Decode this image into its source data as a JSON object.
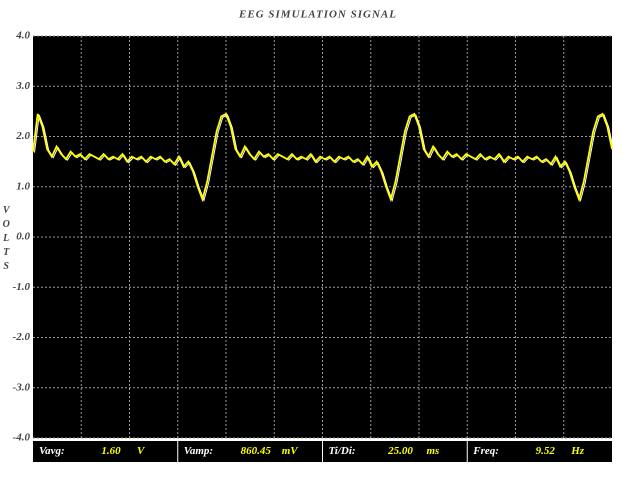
{
  "chart_data": {
    "type": "line",
    "title": "EEG SIMULATION SIGNAL",
    "ylabel": "VOLTS",
    "ylim": [
      -4,
      4
    ],
    "yticks": [
      {
        "value": 4,
        "label": "4.0"
      },
      {
        "value": 3,
        "label": "3.0"
      },
      {
        "value": 2,
        "label": "2.0"
      },
      {
        "value": 1,
        "label": "1.0"
      },
      {
        "value": 0,
        "label": "0.0"
      },
      {
        "value": -1,
        "label": "-1.0"
      },
      {
        "value": -2,
        "label": "-2.0"
      },
      {
        "value": -3,
        "label": "-3.0"
      },
      {
        "value": -4,
        "label": "-4.0"
      }
    ],
    "grid": true,
    "color": "#ffff00",
    "values": [
      1.7,
      2.45,
      2.2,
      1.75,
      1.6,
      1.8,
      1.65,
      1.55,
      1.7,
      1.6,
      1.65,
      1.55,
      1.65,
      1.6,
      1.55,
      1.65,
      1.55,
      1.6,
      1.55,
      1.65,
      1.5,
      1.6,
      1.55,
      1.6,
      1.5,
      1.6,
      1.55,
      1.6,
      1.5,
      1.55,
      1.45,
      1.6,
      1.4,
      1.5,
      1.3,
      1.0,
      0.75,
      1.1,
      1.6,
      2.1,
      2.4,
      2.45,
      2.2,
      1.75,
      1.6,
      1.8,
      1.65,
      1.55,
      1.7,
      1.6,
      1.65,
      1.55,
      1.65,
      1.6,
      1.55,
      1.65,
      1.55,
      1.6,
      1.55,
      1.65,
      1.5,
      1.6,
      1.55,
      1.6,
      1.5,
      1.6,
      1.55,
      1.6,
      1.5,
      1.55,
      1.45,
      1.6,
      1.4,
      1.5,
      1.3,
      1.0,
      0.75,
      1.1,
      1.6,
      2.1,
      2.4,
      2.45,
      2.2,
      1.75,
      1.6,
      1.8,
      1.65,
      1.55,
      1.7,
      1.6,
      1.65,
      1.55,
      1.65,
      1.6,
      1.55,
      1.65,
      1.55,
      1.6,
      1.55,
      1.65,
      1.5,
      1.6,
      1.55,
      1.6,
      1.5,
      1.6,
      1.55,
      1.6,
      1.5,
      1.55,
      1.45,
      1.6,
      1.4,
      1.5,
      1.3,
      1.0,
      0.75,
      1.1,
      1.6,
      2.1,
      2.4,
      2.45,
      2.2,
      1.75
    ]
  },
  "readouts": [
    {
      "label": "Vavg:",
      "value": "1.60",
      "unit": "V"
    },
    {
      "label": "Vamp:",
      "value": "860.45",
      "unit": "mV"
    },
    {
      "label": "Ti/Di:",
      "value": "25.00",
      "unit": "ms"
    },
    {
      "label": "Freq:",
      "value": "9.52",
      "unit": "Hz"
    }
  ]
}
